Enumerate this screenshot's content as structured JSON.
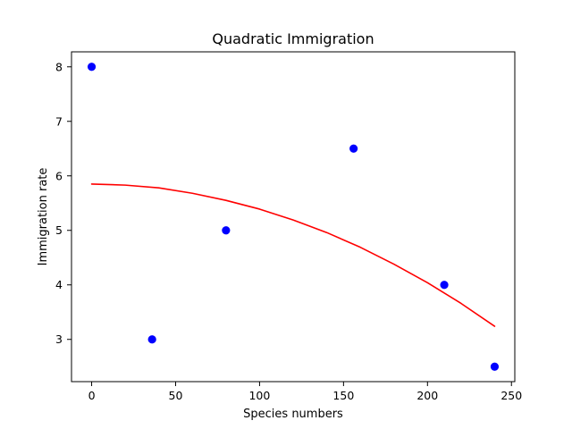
{
  "chart_data": {
    "type": "scatter",
    "title": "Quadratic Immigration",
    "xlabel": "Species numbers",
    "ylabel": "Immigration rate",
    "xlim": [
      -12,
      252
    ],
    "ylim": [
      2.225,
      8.275
    ],
    "xticks": [
      0,
      50,
      100,
      150,
      200,
      250
    ],
    "yticks": [
      3,
      4,
      5,
      6,
      7,
      8
    ],
    "grid": false,
    "series": [
      {
        "kind": "points",
        "color": "#0000ff",
        "x": [
          0,
          36,
          80,
          156,
          210,
          240
        ],
        "y": [
          8,
          3,
          5,
          6.5,
          4,
          2.5
        ]
      },
      {
        "kind": "fit-line",
        "color": "#ff0000",
        "x": [
          0,
          20,
          40,
          60,
          80,
          100,
          120,
          140,
          160,
          180,
          200,
          220,
          240
        ],
        "y": [
          5.85,
          5.83,
          5.78,
          5.68,
          5.55,
          5.39,
          5.19,
          4.96,
          4.69,
          4.38,
          4.04,
          3.66,
          3.24
        ]
      }
    ]
  }
}
